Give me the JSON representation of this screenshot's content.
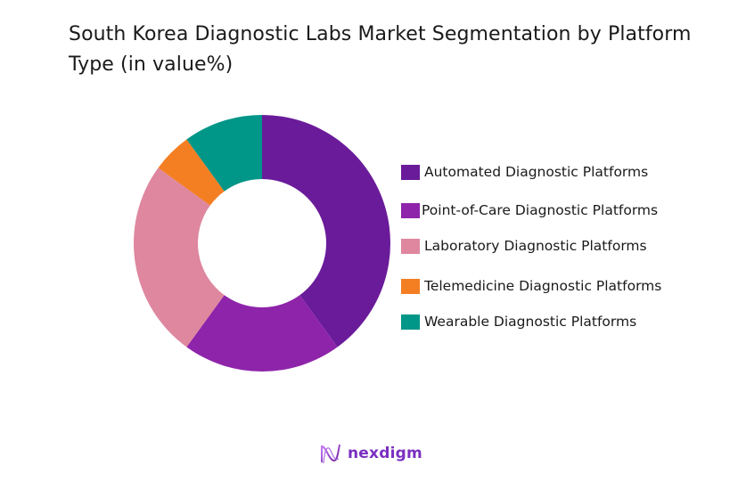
{
  "title": "South Korea  Diagnostic Labs Market Segmentation by Platform Type (in value%)",
  "logo": {
    "text": "nexdigm",
    "icon": "nexdigm-wave-icon",
    "color": "#7a2fc0"
  },
  "chart_data": {
    "type": "pie",
    "subtype": "donut",
    "title": "South Korea  Diagnostic Labs Market Segmentation by Platform Type (in value%)",
    "categories": [
      "Automated Diagnostic Platforms",
      "Point-of-Care Diagnostic Platforms",
      "Laboratory Diagnostic Platforms",
      "Telemedicine Diagnostic Platforms",
      "Wearable Diagnostic Platforms"
    ],
    "values": [
      40,
      20,
      25,
      5,
      10
    ],
    "colors": [
      "#6a1b9a",
      "#8e24aa",
      "#de879f",
      "#f47f23",
      "#009688"
    ],
    "unit": "%",
    "start_angle": "12 o'clock, clockwise",
    "legend_position": "right",
    "data_labels": false
  },
  "legend": [
    {
      "label": "Automated Diagnostic Platforms",
      "color": "#6a1b9a"
    },
    {
      "label": "Point-of-Care Diagnostic Platforms",
      "color": "#8e24aa"
    },
    {
      "label": "Laboratory Diagnostic Platforms",
      "color": "#de879f"
    },
    {
      "label": "Telemedicine Diagnostic Platforms",
      "color": "#f47f23"
    },
    {
      "label": "Wearable Diagnostic Platforms",
      "color": "#009688"
    }
  ]
}
